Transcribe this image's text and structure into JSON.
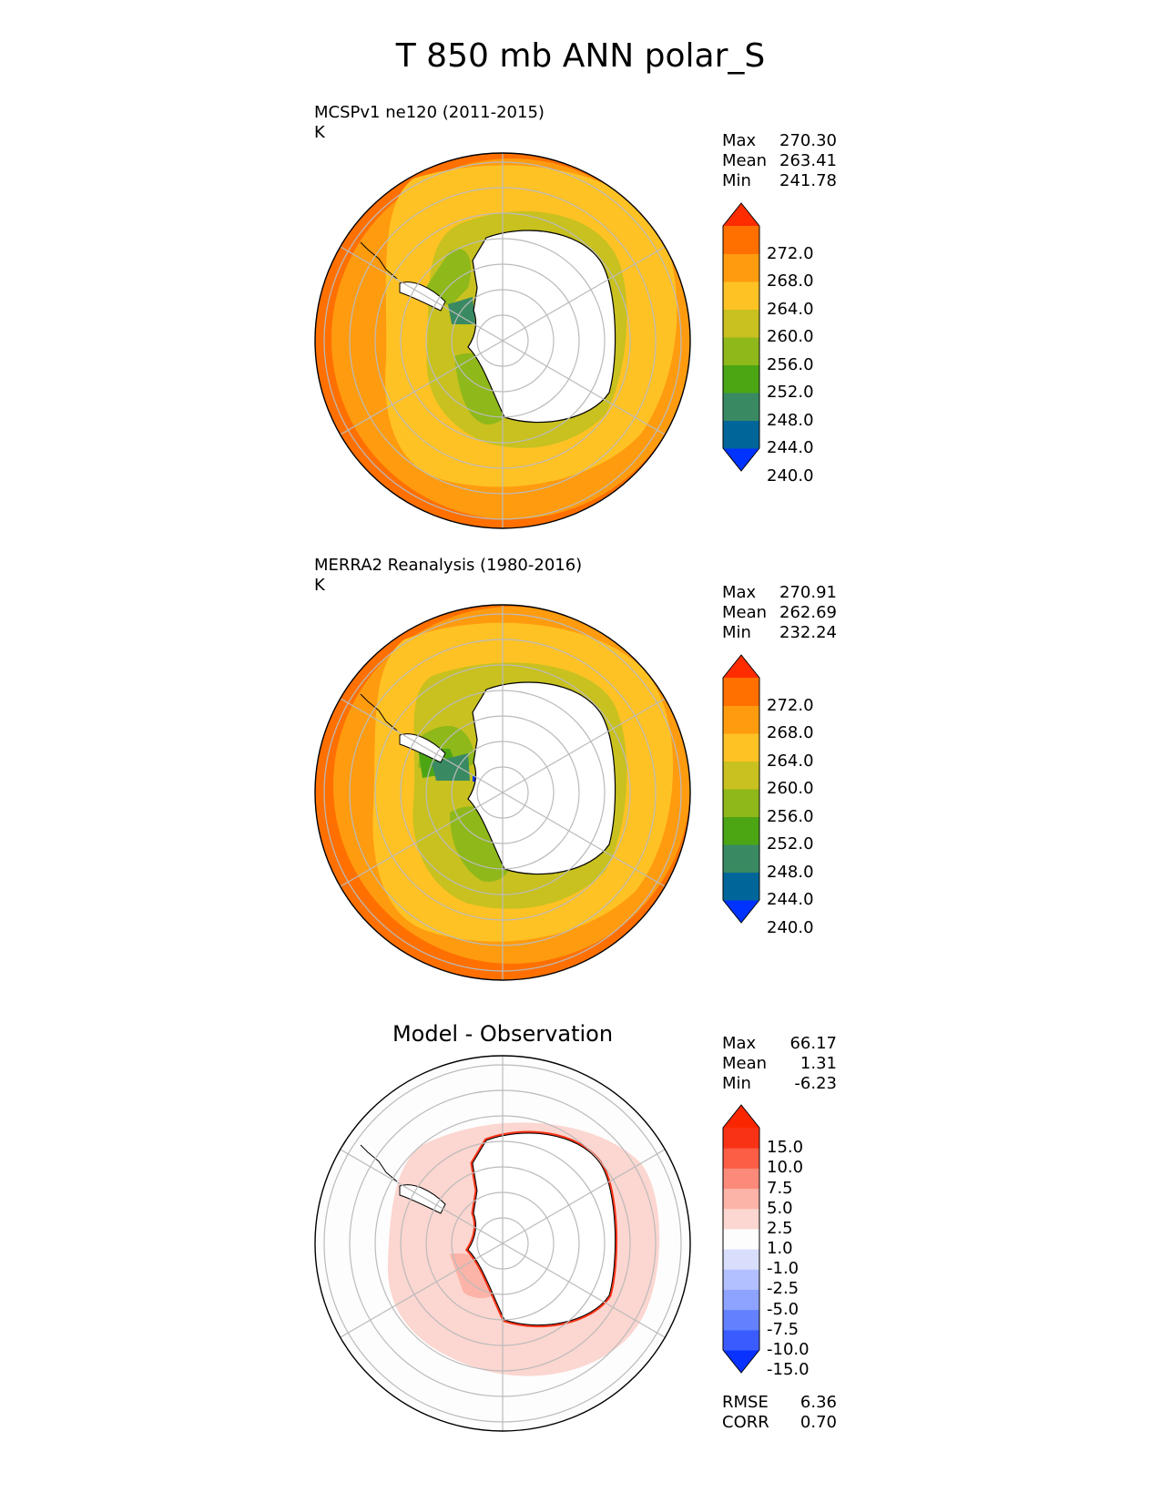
{
  "title": "T 850 mb ANN polar_S",
  "panels": {
    "model": {
      "title": "MCSPv1 ne120 (2011-2015)",
      "units": "K",
      "stats": {
        "max_label": "Max",
        "max": "270.30",
        "mean_label": "Mean",
        "mean": "263.41",
        "min_label": "Min",
        "min": "241.78"
      }
    },
    "obs": {
      "title": "MERRA2 Reanalysis (1980-2016)",
      "units": "K",
      "stats": {
        "max_label": "Max",
        "max": "270.91",
        "mean_label": "Mean",
        "mean": "262.69",
        "min_label": "Min",
        "min": "232.24"
      }
    },
    "diff": {
      "title": "Model - Observation",
      "stats": {
        "max_label": "Max",
        "max": "66.17",
        "mean_label": "Mean",
        "mean": "1.31",
        "min_label": "Min",
        "min": "-6.23"
      },
      "metrics": {
        "rmse_label": "RMSE",
        "rmse": "6.36",
        "corr_label": "CORR",
        "corr": "0.70"
      }
    }
  },
  "colorbars": {
    "temperature": {
      "ticks": [
        "272.0",
        "268.0",
        "264.0",
        "260.0",
        "256.0",
        "252.0",
        "248.0",
        "244.0",
        "240.0"
      ],
      "colors_bottom_to_top": [
        "#0033ff",
        "#006699",
        "#398a63",
        "#4ca614",
        "#8fb81a",
        "#c8c11f",
        "#ffc225",
        "#ff9b0f",
        "#ff7000",
        "#ff2c00"
      ]
    },
    "difference": {
      "ticks": [
        "15.0",
        "10.0",
        "7.5",
        "5.0",
        "2.5",
        "1.0",
        "-1.0",
        "-2.5",
        "-5.0",
        "-7.5",
        "-10.0",
        "-15.0"
      ],
      "colors_bottom_to_top": [
        "#0a32ff",
        "#3a5cff",
        "#6381ff",
        "#8ea3ff",
        "#b3c0ff",
        "#d8defb",
        "#fdfdfd",
        "#fcd6d0",
        "#fcb3a8",
        "#fc8a7a",
        "#fb5e44",
        "#fa3215",
        "#fa2600"
      ]
    }
  },
  "legend_colors": {
    "map_outline": "#000000",
    "grid": "#bbbbbb",
    "land": "#ffffff"
  }
}
